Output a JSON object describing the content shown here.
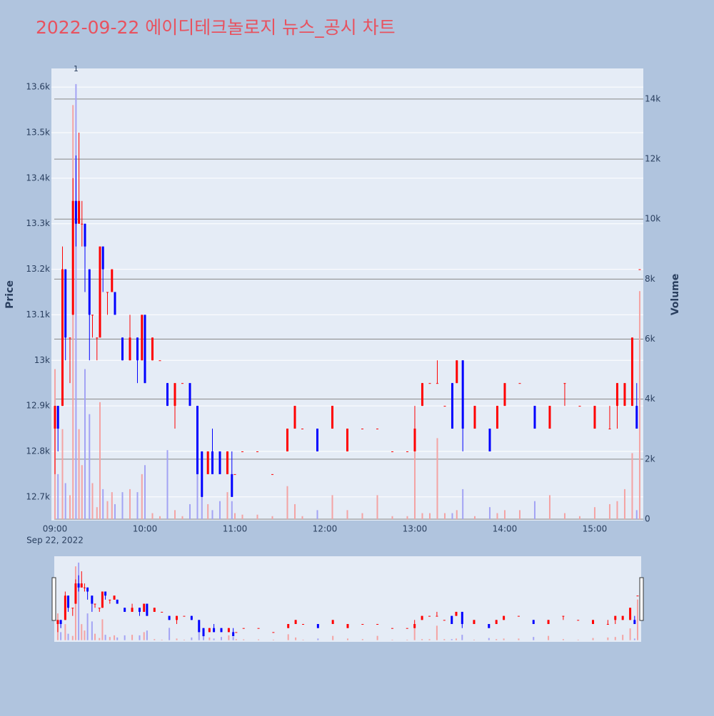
{
  "chart_data": {
    "type": "candlestick",
    "title": "2022-09-22 에이디테크놀로지 뉴스_공시 차트",
    "y_title": "Price",
    "y2_title": "Volume",
    "x_date_label": "Sep 22, 2022",
    "increasing_color": "#ff0000",
    "decreasing_color": "#0000ff",
    "volume_increasing_color": "#f4a3a3",
    "volume_decreasing_color": "#a3a3f4",
    "grid": true,
    "y2grid": true,
    "x": [
      "2022-09-22 09:00",
      "2022-09-22 09:02",
      "2022-09-22 09:05",
      "2022-09-22 09:07",
      "2022-09-22 09:10",
      "2022-09-22 09:12",
      "2022-09-22 09:14",
      "2022-09-22 09:16",
      "2022-09-22 09:18",
      "2022-09-22 09:20",
      "2022-09-22 09:23",
      "2022-09-22 09:25",
      "2022-09-22 09:28",
      "2022-09-22 09:30",
      "2022-09-22 09:32",
      "2022-09-22 09:35",
      "2022-09-22 09:38",
      "2022-09-22 09:40",
      "2022-09-22 09:45",
      "2022-09-22 09:50",
      "2022-09-22 09:55",
      "2022-09-22 09:58",
      "2022-09-22 10:00",
      "2022-09-22 10:05",
      "2022-09-22 10:10",
      "2022-09-22 10:15",
      "2022-09-22 10:20",
      "2022-09-22 10:25",
      "2022-09-22 10:30",
      "2022-09-22 10:35",
      "2022-09-22 10:38",
      "2022-09-22 10:42",
      "2022-09-22 10:45",
      "2022-09-22 10:50",
      "2022-09-22 10:55",
      "2022-09-22 10:58",
      "2022-09-22 11:00",
      "2022-09-22 11:05",
      "2022-09-22 11:15",
      "2022-09-22 11:25",
      "2022-09-22 11:35",
      "2022-09-22 11:40",
      "2022-09-22 11:45",
      "2022-09-22 11:55",
      "2022-09-22 12:05",
      "2022-09-22 12:15",
      "2022-09-22 12:25",
      "2022-09-22 12:35",
      "2022-09-22 12:45",
      "2022-09-22 12:55",
      "2022-09-22 13:00",
      "2022-09-22 13:05",
      "2022-09-22 13:10",
      "2022-09-22 13:15",
      "2022-09-22 13:20",
      "2022-09-22 13:25",
      "2022-09-22 13:28",
      "2022-09-22 13:32",
      "2022-09-22 13:40",
      "2022-09-22 13:50",
      "2022-09-22 13:55",
      "2022-09-22 14:00",
      "2022-09-22 14:10",
      "2022-09-22 14:20",
      "2022-09-22 14:30",
      "2022-09-22 14:40",
      "2022-09-22 14:50",
      "2022-09-22 15:00",
      "2022-09-22 15:10",
      "2022-09-22 15:15",
      "2022-09-22 15:20",
      "2022-09-22 15:25",
      "2022-09-22 15:28",
      "2022-09-22 15:30"
    ],
    "open": [
      12850,
      12900,
      12900,
      13200,
      13050,
      13100,
      13350,
      13300,
      13300,
      13300,
      13200,
      13100,
      13050,
      13050,
      13250,
      13150,
      13150,
      13150,
      13050,
      13000,
      13050,
      13000,
      13100,
      13000,
      13000,
      12950,
      12900,
      12950,
      12950,
      12900,
      12800,
      12750,
      12800,
      12800,
      12750,
      12750,
      12750,
      12800,
      12800,
      12750,
      12800,
      12850,
      12850,
      12850,
      12850,
      12800,
      12850,
      12850,
      12800,
      12800,
      12800,
      12900,
      12950,
      12950,
      12900,
      12950,
      12950,
      13000,
      12850,
      12850,
      12850,
      12900,
      12950,
      12900,
      12850,
      12950,
      12900,
      12850,
      12850,
      12900,
      12900,
      12900,
      12900,
      13200
    ],
    "high": [
      12900,
      12900,
      13250,
      13200,
      13050,
      13400,
      13450,
      13500,
      13350,
      13300,
      13200,
      13100,
      13050,
      13250,
      13250,
      13150,
      13200,
      13150,
      13050,
      13100,
      13050,
      13100,
      13100,
      13050,
      13000,
      12950,
      12950,
      12950,
      12950,
      12900,
      12800,
      12800,
      12850,
      12800,
      12800,
      12800,
      12750,
      12800,
      12800,
      12750,
      12850,
      12900,
      12850,
      12850,
      12900,
      12850,
      12850,
      12850,
      12800,
      12800,
      12900,
      12950,
      12950,
      13000,
      12900,
      12950,
      13000,
      13000,
      12900,
      12850,
      12900,
      12950,
      12950,
      12900,
      12900,
      12950,
      12900,
      12900,
      12900,
      12950,
      12950,
      13050,
      12950,
      13200
    ],
    "low": [
      12750,
      12800,
      12900,
      13000,
      12950,
      13100,
      13250,
      13300,
      13250,
      13150,
      13000,
      13050,
      13000,
      13050,
      13150,
      13100,
      13150,
      13100,
      13000,
      13000,
      12950,
      13000,
      12950,
      13000,
      13000,
      12900,
      12850,
      12950,
      12900,
      12750,
      12700,
      12750,
      12750,
      12750,
      12750,
      12700,
      12750,
      12800,
      12800,
      12750,
      12800,
      12850,
      12850,
      12800,
      12850,
      12800,
      12850,
      12850,
      12800,
      12800,
      12800,
      12900,
      12950,
      12950,
      12900,
      12850,
      12950,
      12800,
      12850,
      12800,
      12850,
      12900,
      12950,
      12850,
      12850,
      12900,
      12900,
      12850,
      12850,
      12850,
      12900,
      12900,
      12850,
      13200
    ],
    "close": [
      12900,
      12850,
      13200,
      13050,
      13050,
      13350,
      13300,
      13350,
      13300,
      13250,
      13100,
      13100,
      13050,
      13250,
      13200,
      13150,
      13200,
      13100,
      13000,
      13050,
      13000,
      13100,
      12950,
      13050,
      13000,
      12900,
      12950,
      12950,
      12900,
      12750,
      12700,
      12800,
      12750,
      12750,
      12800,
      12700,
      12750,
      12800,
      12800,
      12750,
      12850,
      12900,
      12850,
      12800,
      12900,
      12850,
      12850,
      12850,
      12800,
      12800,
      12850,
      12950,
      12950,
      12950,
      12900,
      12850,
      13000,
      12850,
      12900,
      12800,
      12900,
      12950,
      12950,
      12850,
      12900,
      12950,
      12900,
      12900,
      12850,
      12950,
      12950,
      13050,
      12850,
      13200
    ],
    "volume": [
      5000,
      1500,
      3000,
      1200,
      800,
      13800,
      14500,
      3000,
      1800,
      5000,
      3500,
      1200,
      400,
      3900,
      1000,
      600,
      900,
      500,
      900,
      1000,
      900,
      1500,
      1800,
      200,
      100,
      2300,
      300,
      100,
      500,
      1800,
      1000,
      500,
      300,
      600,
      900,
      600,
      200,
      150,
      150,
      100,
      1100,
      500,
      100,
      300,
      800,
      300,
      200,
      800,
      100,
      100,
      3000,
      200,
      200,
      2700,
      200,
      200,
      300,
      1000,
      100,
      400,
      200,
      300,
      300,
      600,
      800,
      200,
      100,
      400,
      500,
      600,
      1000,
      2200,
      300,
      7600
    ],
    "xlim": [
      "2022-09-22 08:57:37",
      "2022-09-22 15:32:24"
    ],
    "xticks": [
      {
        "value": "2022-09-22 09:00",
        "label": "09:00"
      },
      {
        "value": "2022-09-22 10:00",
        "label": "10:00"
      },
      {
        "value": "2022-09-22 11:00",
        "label": "11:00"
      },
      {
        "value": "2022-09-22 12:00",
        "label": "12:00"
      },
      {
        "value": "2022-09-22 13:00",
        "label": "13:00"
      },
      {
        "value": "2022-09-22 14:00",
        "label": "14:00"
      },
      {
        "value": "2022-09-22 15:00",
        "label": "15:00"
      }
    ],
    "ylim": [
      12648,
      13641
    ],
    "yticks": [
      {
        "value": 12700,
        "label": "12.7k"
      },
      {
        "value": 12800,
        "label": "12.8k"
      },
      {
        "value": 12900,
        "label": "12.9k"
      },
      {
        "value": 13000,
        "label": "13k"
      },
      {
        "value": 13100,
        "label": "13.1k"
      },
      {
        "value": 13200,
        "label": "13.2k"
      },
      {
        "value": 13300,
        "label": "13.3k"
      },
      {
        "value": 13400,
        "label": "13.4k"
      },
      {
        "value": 13500,
        "label": "13.5k"
      },
      {
        "value": 13600,
        "label": "13.6k"
      }
    ],
    "y2lim": [
      -48,
      15020
    ],
    "y2ticks": [
      0,
      {
        "value": 2000,
        "label": "2k"
      },
      {
        "value": 4000,
        "label": "4k"
      },
      {
        "value": 6000,
        "label": "6k"
      },
      {
        "value": 8000,
        "label": "8k"
      },
      {
        "value": 10000,
        "label": "10k"
      },
      {
        "value": 12000,
        "label": "12k"
      },
      {
        "value": 14000,
        "label": "14k"
      }
    ],
    "annotations": [
      {
        "text": "1",
        "x": "2022-09-22 09:14"
      }
    ]
  }
}
